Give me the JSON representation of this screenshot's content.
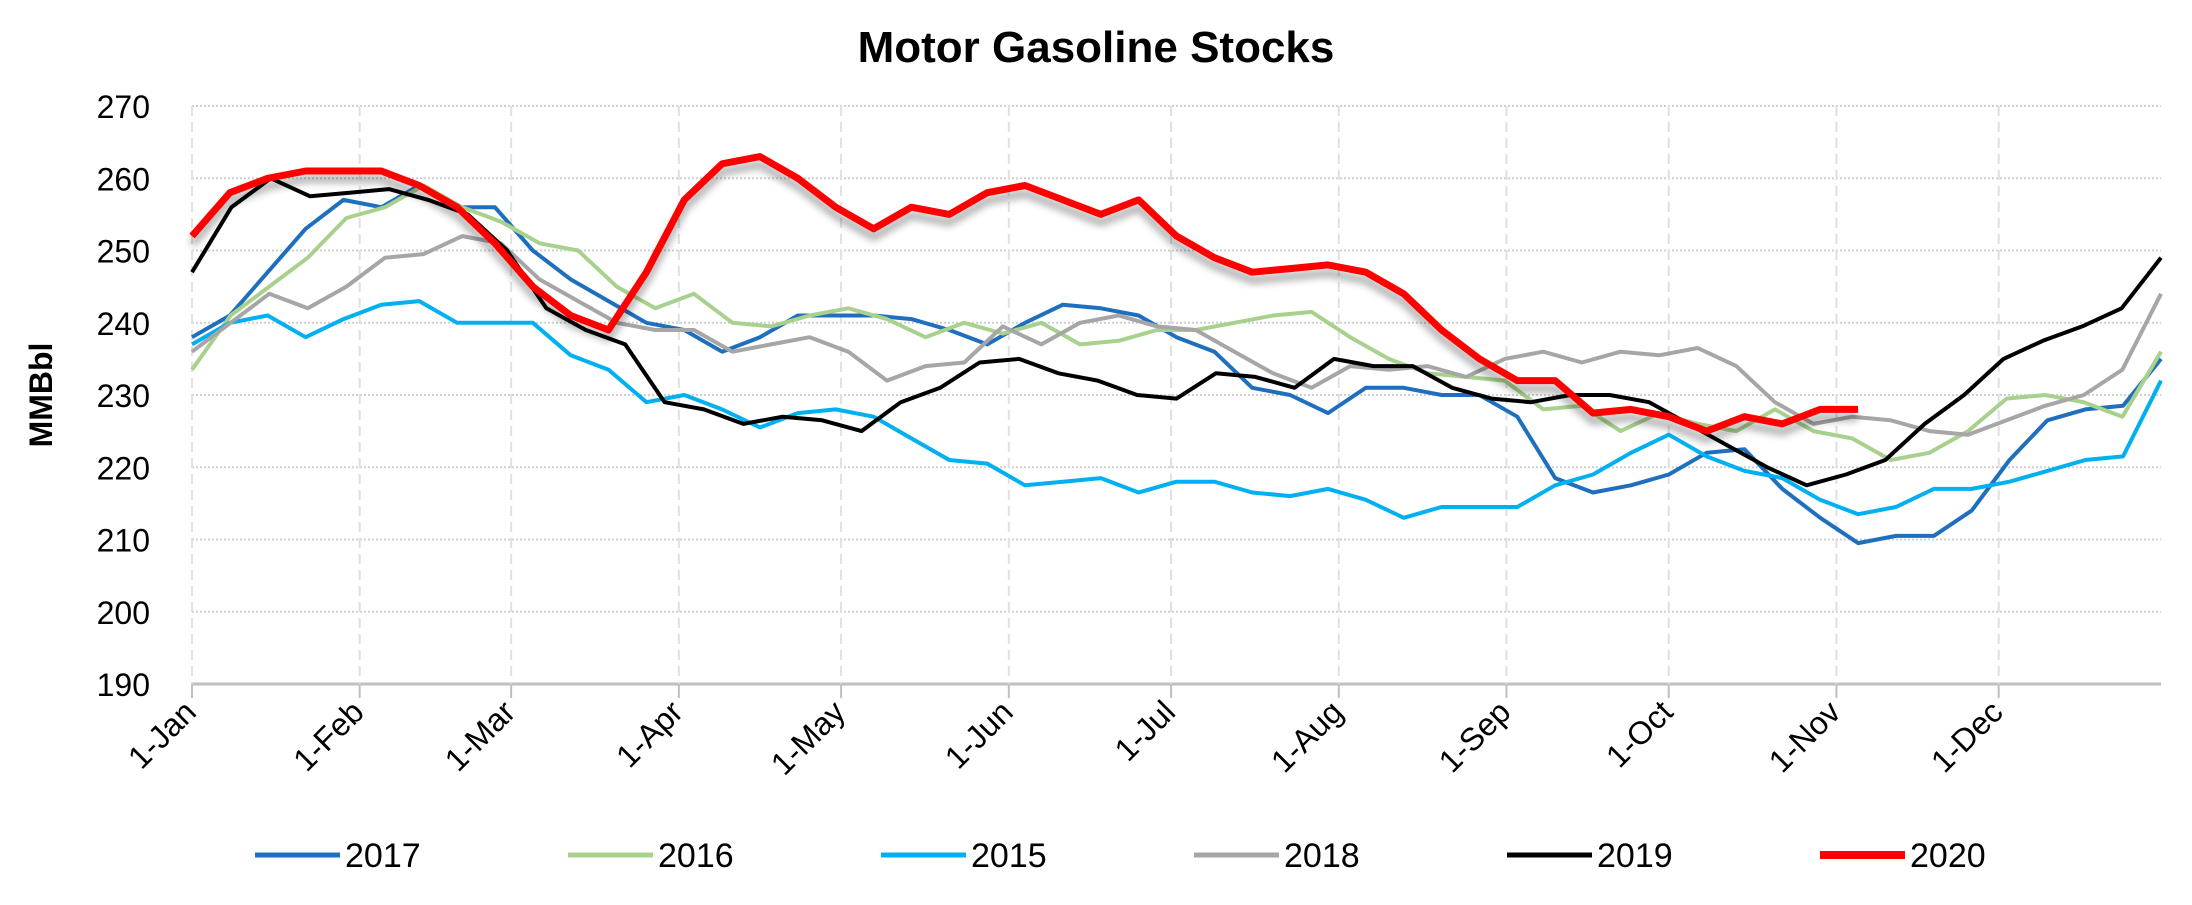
{
  "chart_data": {
    "type": "line",
    "title": "Motor Gasoline Stocks",
    "xlabel": "",
    "ylabel": "MMBbl",
    "ylim": [
      190,
      270
    ],
    "yticks": [
      190,
      200,
      210,
      220,
      230,
      240,
      250,
      260,
      270
    ],
    "xtick_labels": [
      "1-Jan",
      "1-Feb",
      "1-Mar",
      "1-Apr",
      "1-May",
      "1-Jun",
      "1-Jul",
      "1-Aug",
      "1-Sep",
      "1-Oct",
      "1-Nov",
      "1-Dec"
    ],
    "xtick_days": [
      0,
      31,
      59,
      90,
      120,
      151,
      181,
      212,
      243,
      273,
      304,
      334
    ],
    "x_unit": "weekly",
    "grid": true,
    "legend_position": "bottom",
    "series": [
      {
        "name": "2017",
        "color": "#1f6fbf",
        "full_year": true,
        "values": [
          238,
          241,
          247,
          253,
          257,
          256,
          259,
          256,
          256,
          250,
          246,
          243,
          240,
          239,
          236,
          238,
          241,
          241,
          241,
          240.5,
          239,
          237,
          240,
          242.5,
          242,
          241,
          238,
          236,
          231,
          230,
          227.5,
          231,
          231,
          230,
          230,
          227,
          218.5,
          216.5,
          217.5,
          219,
          222,
          222.5,
          217,
          213,
          209.5,
          210.5,
          210.5,
          214,
          221,
          226.5,
          228,
          228.5,
          235
        ]
      },
      {
        "name": "2016",
        "color": "#a9d18e",
        "full_year": true,
        "values": [
          233.5,
          241,
          245,
          249,
          254.5,
          256,
          259,
          256,
          254,
          251,
          250,
          245,
          242,
          244,
          240,
          239.5,
          241,
          242,
          240.5,
          238,
          240,
          238.5,
          240,
          237,
          237.5,
          239,
          239,
          240,
          241,
          241.5,
          238,
          235,
          233,
          232.5,
          232,
          228,
          228.5,
          225,
          227.5,
          226,
          225,
          228,
          225,
          224,
          221,
          222,
          225,
          229.5,
          230,
          229,
          227,
          236
        ]
      },
      {
        "name": "2015",
        "color": "#00b0f0",
        "full_year": true,
        "values": [
          237,
          240,
          241,
          238,
          240.5,
          242.5,
          243,
          240,
          240,
          240,
          235.5,
          233.5,
          229,
          230,
          228,
          225.5,
          227.5,
          228,
          227,
          224,
          221,
          220.5,
          217.5,
          218,
          218.5,
          216.5,
          218,
          218,
          216.5,
          216,
          217,
          215.5,
          213,
          214.5,
          214.5,
          214.5,
          217.5,
          219,
          222,
          224.5,
          221.5,
          219.5,
          218.5,
          215.5,
          213.5,
          214.5,
          217,
          217,
          218,
          219.5,
          221,
          221.5,
          232
        ]
      },
      {
        "name": "2018",
        "color": "#a6a6a6",
        "full_year": true,
        "values": [
          236,
          240,
          244,
          242,
          245,
          249,
          249.5,
          252,
          251,
          246,
          243,
          240,
          239,
          239,
          236,
          237,
          238,
          236,
          232,
          234,
          234.5,
          239.5,
          237,
          240,
          241,
          239.5,
          239,
          236,
          233,
          231,
          234,
          233.5,
          234,
          232.5,
          235,
          236,
          234.5,
          236,
          235.5,
          236.5,
          234,
          229,
          226,
          227,
          226.5,
          225,
          224.5,
          226.5,
          228.5,
          230,
          233.5,
          244
        ]
      },
      {
        "name": "2019",
        "color": "#000000",
        "full_year": true,
        "values": [
          247,
          256,
          260,
          257.5,
          258,
          258.5,
          257,
          255,
          250,
          242,
          239,
          237,
          229,
          228,
          226,
          227,
          226.5,
          225,
          229,
          231,
          234.5,
          235,
          233,
          232,
          230,
          229.5,
          233,
          232.5,
          231,
          235,
          234,
          234,
          231,
          229.5,
          229,
          230,
          230,
          229,
          226,
          223,
          220,
          217.5,
          219,
          221,
          226,
          230,
          235,
          237.5,
          239.5,
          242,
          249
        ]
      },
      {
        "name": "2020",
        "color": "#ff0000",
        "full_year": false,
        "values": [
          252,
          258,
          260,
          261,
          261,
          261,
          259,
          256,
          251,
          245,
          241,
          239,
          247,
          257,
          262,
          263,
          260,
          256,
          253,
          256,
          255,
          258,
          259,
          257,
          255,
          257,
          252,
          249,
          247,
          247.5,
          248,
          247,
          244,
          239,
          235,
          232,
          232,
          227.5,
          228,
          227,
          225,
          227,
          226,
          228,
          228
        ]
      }
    ]
  }
}
